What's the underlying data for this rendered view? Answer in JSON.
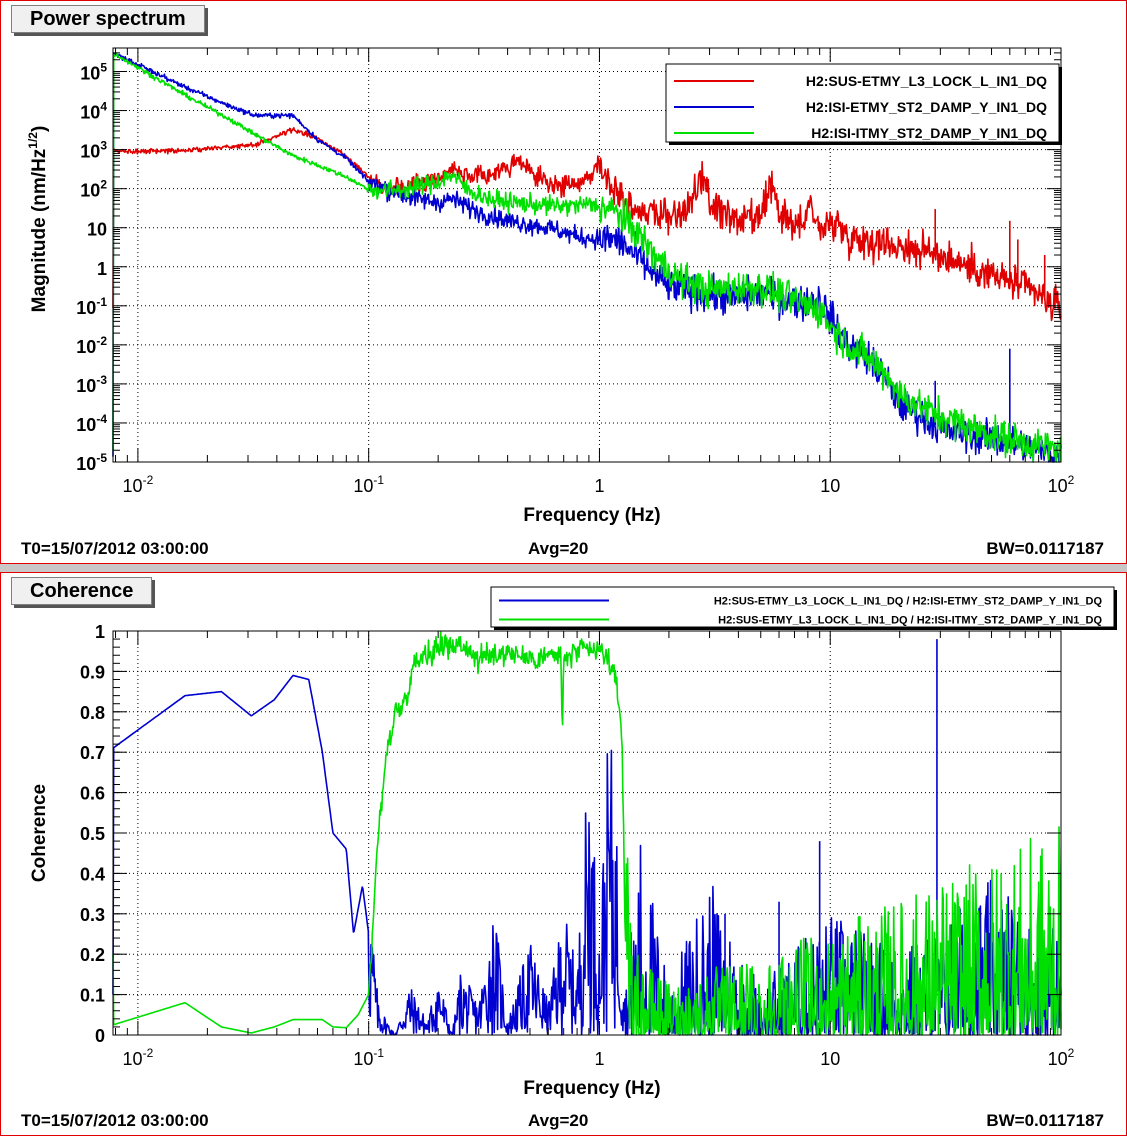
{
  "power": {
    "title": "Power spectrum",
    "ylabel_main": "Magnitude (nm/Hz",
    "ylabel_sup": "1/2",
    "ylabel_close": ")",
    "xlabel": "Frequency (Hz)",
    "footer": {
      "t0": "T0=15/07/2012 03:00:00",
      "avg": "Avg=20",
      "bw": "BW=0.0117187"
    }
  },
  "coherence": {
    "title": "Coherence",
    "ylabel": "Coherence",
    "xlabel": "Frequency (Hz)",
    "footer": {
      "t0": "T0=15/07/2012 03:00:00",
      "avg": "Avg=20",
      "bw": "BW=0.0117187"
    }
  },
  "chart_data": [
    {
      "type": "line",
      "title": "Power spectrum",
      "xlabel": "Frequency (Hz)",
      "ylabel": "Magnitude (nm/Hz^1/2)",
      "xscale": "log",
      "yscale": "log",
      "xlim": [
        0.0078,
        100
      ],
      "ylim": [
        1e-05,
        400000
      ],
      "x_ticks": [
        0.01,
        0.1,
        1,
        10,
        100
      ],
      "y_ticks": [
        1e-05,
        0.0001,
        0.001,
        0.01,
        0.1,
        1,
        10,
        100,
        1000,
        10000,
        100000
      ],
      "grid": true,
      "legend_position": "top-right",
      "series": [
        {
          "name": "H2:SUS-ETMY_L3_LOCK_L_IN1_DQ",
          "color": "#e00000",
          "points": [
            [
              0.0078,
              900
            ],
            [
              0.016,
              950
            ],
            [
              0.025,
              1200
            ],
            [
              0.032,
              1300
            ],
            [
              0.047,
              3300
            ],
            [
              0.06,
              1900
            ],
            [
              0.08,
              700
            ],
            [
              0.1,
              200
            ],
            [
              0.12,
              110
            ],
            [
              0.15,
              120
            ],
            [
              0.2,
              200
            ],
            [
              0.23,
              350
            ],
            [
              0.27,
              180
            ],
            [
              0.35,
              250
            ],
            [
              0.45,
              500
            ],
            [
              0.55,
              170
            ],
            [
              0.7,
              110
            ],
            [
              0.85,
              150
            ],
            [
              1.0,
              450
            ],
            [
              1.1,
              150
            ],
            [
              1.3,
              45
            ],
            [
              1.6,
              25
            ],
            [
              2.0,
              20
            ],
            [
              2.4,
              25
            ],
            [
              2.8,
              220
            ],
            [
              3.0,
              40
            ],
            [
              4.0,
              15
            ],
            [
              5.0,
              15
            ],
            [
              5.5,
              150
            ],
            [
              6.0,
              20
            ],
            [
              7.5,
              10
            ],
            [
              8.2,
              50
            ],
            [
              9.0,
              8
            ],
            [
              10.5,
              15
            ],
            [
              12,
              6
            ],
            [
              20,
              3.5
            ],
            [
              30,
              2
            ],
            [
              50,
              0.6
            ],
            [
              70,
              0.3
            ],
            [
              100,
              0.08
            ]
          ],
          "peaks": [
            [
              28.5,
              30
            ],
            [
              60,
              15
            ],
            [
              65,
              5
            ],
            [
              85,
              2
            ]
          ]
        },
        {
          "name": "H2:ISI-ETMY_ST2_DAMP_Y_IN1_DQ",
          "color": "#0000d0",
          "points": [
            [
              0.0078,
              300000
            ],
            [
              0.016,
              40000
            ],
            [
              0.025,
              13000
            ],
            [
              0.032,
              7500
            ],
            [
              0.047,
              7500
            ],
            [
              0.06,
              1800
            ],
            [
              0.08,
              600
            ],
            [
              0.1,
              150
            ],
            [
              0.12,
              100
            ],
            [
              0.15,
              60
            ],
            [
              0.2,
              45
            ],
            [
              0.23,
              55
            ],
            [
              0.3,
              25
            ],
            [
              0.4,
              15
            ],
            [
              0.6,
              10
            ],
            [
              0.8,
              6
            ],
            [
              1.0,
              5
            ],
            [
              1.2,
              5
            ],
            [
              1.5,
              1.5
            ],
            [
              1.8,
              0.5
            ],
            [
              2.0,
              0.3
            ],
            [
              3.0,
              0.2
            ],
            [
              4.0,
              0.15
            ],
            [
              5.0,
              0.25
            ],
            [
              6.0,
              0.15
            ],
            [
              8.0,
              0.12
            ],
            [
              9.0,
              0.15
            ],
            [
              10,
              0.05
            ],
            [
              12,
              0.01
            ],
            [
              15,
              0.004
            ],
            [
              18,
              0.001
            ],
            [
              20,
              0.0003
            ],
            [
              25,
              0.00015
            ],
            [
              30,
              7e-05
            ],
            [
              50,
              4e-05
            ],
            [
              100,
              1.4e-05
            ]
          ],
          "peaks": [
            [
              28.5,
              0.0012
            ],
            [
              60,
              0.008
            ]
          ]
        },
        {
          "name": "H2:ISI-ITMY_ST2_DAMP_Y_IN1_DQ",
          "color": "#00e000",
          "points": [
            [
              0.0078,
              300000
            ],
            [
              0.016,
              25000
            ],
            [
              0.025,
              6000
            ],
            [
              0.032,
              2500
            ],
            [
              0.047,
              700
            ],
            [
              0.06,
              400
            ],
            [
              0.08,
              200
            ],
            [
              0.1,
              95
            ],
            [
              0.12,
              90
            ],
            [
              0.15,
              100
            ],
            [
              0.2,
              150
            ],
            [
              0.23,
              230
            ],
            [
              0.27,
              90
            ],
            [
              0.35,
              50
            ],
            [
              0.5,
              40
            ],
            [
              0.7,
              35
            ],
            [
              0.9,
              40
            ],
            [
              1.0,
              35
            ],
            [
              1.2,
              25
            ],
            [
              1.5,
              6
            ],
            [
              1.8,
              1.5
            ],
            [
              2.2,
              0.5
            ],
            [
              3.0,
              0.25
            ],
            [
              4.0,
              0.3
            ],
            [
              5.0,
              0.3
            ],
            [
              6.0,
              0.2
            ],
            [
              8.0,
              0.1
            ],
            [
              9.0,
              0.08
            ],
            [
              10,
              0.03
            ],
            [
              12,
              0.01
            ],
            [
              15,
              0.004
            ],
            [
              18,
              0.0015
            ],
            [
              20,
              0.0005
            ],
            [
              30,
              0.00015
            ],
            [
              50,
              5e-05
            ],
            [
              100,
              2e-05
            ]
          ],
          "peaks": []
        }
      ]
    },
    {
      "type": "line",
      "title": "Coherence",
      "xlabel": "Frequency (Hz)",
      "ylabel": "Coherence",
      "xscale": "log",
      "yscale": "linear",
      "xlim": [
        0.0078,
        100
      ],
      "ylim": [
        0,
        1
      ],
      "x_ticks": [
        0.01,
        0.1,
        1,
        10,
        100
      ],
      "y_ticks": [
        0,
        0.1,
        0.2,
        0.3,
        0.4,
        0.5,
        0.6,
        0.7,
        0.8,
        0.9,
        1
      ],
      "grid": true,
      "legend_position": "top-right",
      "series": [
        {
          "name": "H2:SUS-ETMY_L3_LOCK_L_IN1_DQ / H2:ISI-ETMY_ST2_DAMP_Y_IN1_DQ",
          "color": "#0000d0",
          "points": [
            [
              0.0078,
              0.71
            ],
            [
              0.016,
              0.84
            ],
            [
              0.023,
              0.85
            ],
            [
              0.031,
              0.79
            ],
            [
              0.039,
              0.83
            ],
            [
              0.047,
              0.89
            ],
            [
              0.055,
              0.88
            ],
            [
              0.063,
              0.7
            ],
            [
              0.07,
              0.5
            ],
            [
              0.08,
              0.46
            ],
            [
              0.086,
              0.25
            ],
            [
              0.094,
              0.37
            ],
            [
              0.1,
              0.25
            ],
            [
              0.11,
              0.05
            ],
            [
              0.13,
              0
            ],
            [
              0.15,
              0.08
            ],
            [
              0.18,
              0.02
            ],
            [
              0.2,
              0.1
            ],
            [
              0.23,
              0
            ],
            [
              0.25,
              0.1
            ],
            [
              0.3,
              0.05
            ],
            [
              0.35,
              0.2
            ],
            [
              0.4,
              0.02
            ],
            [
              0.5,
              0.15
            ],
            [
              0.6,
              0.05
            ],
            [
              0.7,
              0.2
            ],
            [
              0.8,
              0.1
            ],
            [
              0.9,
              0.45
            ],
            [
              1.0,
              0.15
            ],
            [
              1.1,
              0.5
            ],
            [
              1.2,
              0.3
            ],
            [
              1.3,
              0.05
            ],
            [
              1.5,
              0.2
            ],
            [
              2.0,
              0.05
            ],
            [
              3.0,
              0.15
            ],
            [
              5.0,
              0.05
            ],
            [
              10,
              0.12
            ],
            [
              20,
              0.08
            ],
            [
              50,
              0.15
            ],
            [
              100,
              0.1
            ]
          ],
          "peaks": [
            [
              29,
              0.98
            ],
            [
              9,
              0.48
            ],
            [
              6,
              0.33
            ],
            [
              3.5,
              0.3
            ]
          ]
        },
        {
          "name": "H2:SUS-ETMY_L3_LOCK_L_IN1_DQ / H2:ISI-ITMY_ST2_DAMP_Y_IN1_DQ",
          "color": "#00e000",
          "points": [
            [
              0.0078,
              0.025
            ],
            [
              0.016,
              0.08
            ],
            [
              0.023,
              0.02
            ],
            [
              0.031,
              0.005
            ],
            [
              0.039,
              0.02
            ],
            [
              0.047,
              0.038
            ],
            [
              0.063,
              0.038
            ],
            [
              0.07,
              0.02
            ],
            [
              0.08,
              0.018
            ],
            [
              0.09,
              0.05
            ],
            [
              0.1,
              0.1
            ],
            [
              0.11,
              0.5
            ],
            [
              0.12,
              0.7
            ],
            [
              0.13,
              0.8
            ],
            [
              0.14,
              0.81
            ],
            [
              0.16,
              0.93
            ],
            [
              0.2,
              0.96
            ],
            [
              0.25,
              0.97
            ],
            [
              0.3,
              0.93
            ],
            [
              0.4,
              0.95
            ],
            [
              0.5,
              0.93
            ],
            [
              0.6,
              0.94
            ],
            [
              0.68,
              0.94
            ],
            [
              0.69,
              0.73
            ],
            [
              0.7,
              0.93
            ],
            [
              0.8,
              0.95
            ],
            [
              1.0,
              0.95
            ],
            [
              1.1,
              0.93
            ],
            [
              1.2,
              0.85
            ],
            [
              1.25,
              0.75
            ],
            [
              1.3,
              0.2
            ],
            [
              1.4,
              0.08
            ],
            [
              2.0,
              0.05
            ],
            [
              5.0,
              0.08
            ],
            [
              10,
              0.1
            ],
            [
              30,
              0.15
            ],
            [
              100,
              0.2
            ]
          ],
          "peaks": [
            [
              55,
              0.4
            ],
            [
              80,
              0.38
            ]
          ]
        }
      ]
    }
  ]
}
